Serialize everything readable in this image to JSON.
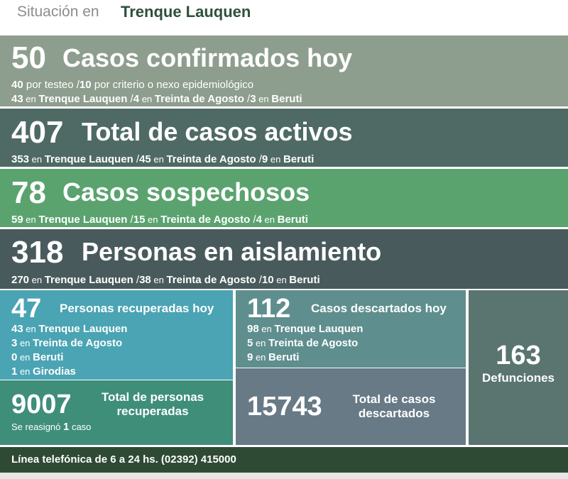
{
  "header": {
    "label": "Situación en",
    "place": "Trenque Lauquen"
  },
  "confirmed": {
    "number": "50",
    "title": "Casos confirmados hoy",
    "line1": [
      {
        "n": "40",
        "t": " por testeo  /"
      },
      {
        "n": "10",
        "t": " por criterio o nexo epidemiológico"
      }
    ],
    "line2": [
      {
        "n": "43",
        "en": " en ",
        "place": "Trenque Lauquen",
        "sep": "  /"
      },
      {
        "n": "4",
        "en": " en ",
        "place": "Treinta de Agosto",
        "sep": "  /"
      },
      {
        "n": "3",
        "en": " en ",
        "place": "Beruti",
        "sep": ""
      }
    ]
  },
  "active": {
    "number": "407",
    "title": "Total de casos activos",
    "line": [
      {
        "n": "353",
        "en": " en ",
        "place": "Trenque Lauquen",
        "sep": "  /"
      },
      {
        "n": "45",
        "en": " en ",
        "place": "Treinta de Agosto",
        "sep": "  /"
      },
      {
        "n": "9",
        "en": " en ",
        "place": "Beruti",
        "sep": ""
      }
    ]
  },
  "suspected": {
    "number": "78",
    "title": "Casos sospechosos",
    "line": [
      {
        "n": "59",
        "en": " en ",
        "place": "Trenque Lauquen",
        "sep": "  /"
      },
      {
        "n": "15",
        "en": " en ",
        "place": "Treinta de Agosto",
        "sep": "  /"
      },
      {
        "n": "4",
        "en": " en ",
        "place": "Beruti",
        "sep": ""
      }
    ]
  },
  "isolation": {
    "number": "318",
    "title": "Personas en aislamiento",
    "line": [
      {
        "n": "270",
        "en": " en ",
        "place": "Trenque Lauquen",
        "sep": "  /"
      },
      {
        "n": "38",
        "en": " en ",
        "place": "Treinta de Agosto",
        "sep": "  /"
      },
      {
        "n": "10",
        "en": " en ",
        "place": "Beruti",
        "sep": ""
      }
    ]
  },
  "recovered_today": {
    "number": "47",
    "title": "Personas recuperadas hoy",
    "rows": [
      {
        "n": "43",
        "en": " en ",
        "place": "Trenque Lauquen"
      },
      {
        "n": "3",
        "en": " en ",
        "place": "Treinta de Agosto"
      },
      {
        "n": "0",
        "en": " en ",
        "place": "Beruti"
      },
      {
        "n": "1",
        "en": " en ",
        "place": "Girodias"
      }
    ]
  },
  "recovered_total": {
    "number": "9007",
    "title_line1": "Total de personas",
    "title_line2": "recuperadas",
    "note_pre": "Se reasignó ",
    "note_n": "1",
    "note_post": " caso"
  },
  "discarded_today": {
    "number": "112",
    "title": "Casos descartados hoy",
    "rows": [
      {
        "n": "98",
        "en": " en ",
        "place": "Trenque Lauquen"
      },
      {
        "n": "5",
        "en": " en ",
        "place": "Treinta de Agosto"
      },
      {
        "n": "9",
        "en": " en ",
        "place": "Beruti"
      }
    ]
  },
  "discarded_total": {
    "number": "15743",
    "title_line1": "Total de casos",
    "title_line2": "descartados"
  },
  "deaths": {
    "number": "163",
    "label": "Defunciones"
  },
  "footer": {
    "text": "Línea telefónica de 6 a 24 hs. (02392) 415000"
  }
}
